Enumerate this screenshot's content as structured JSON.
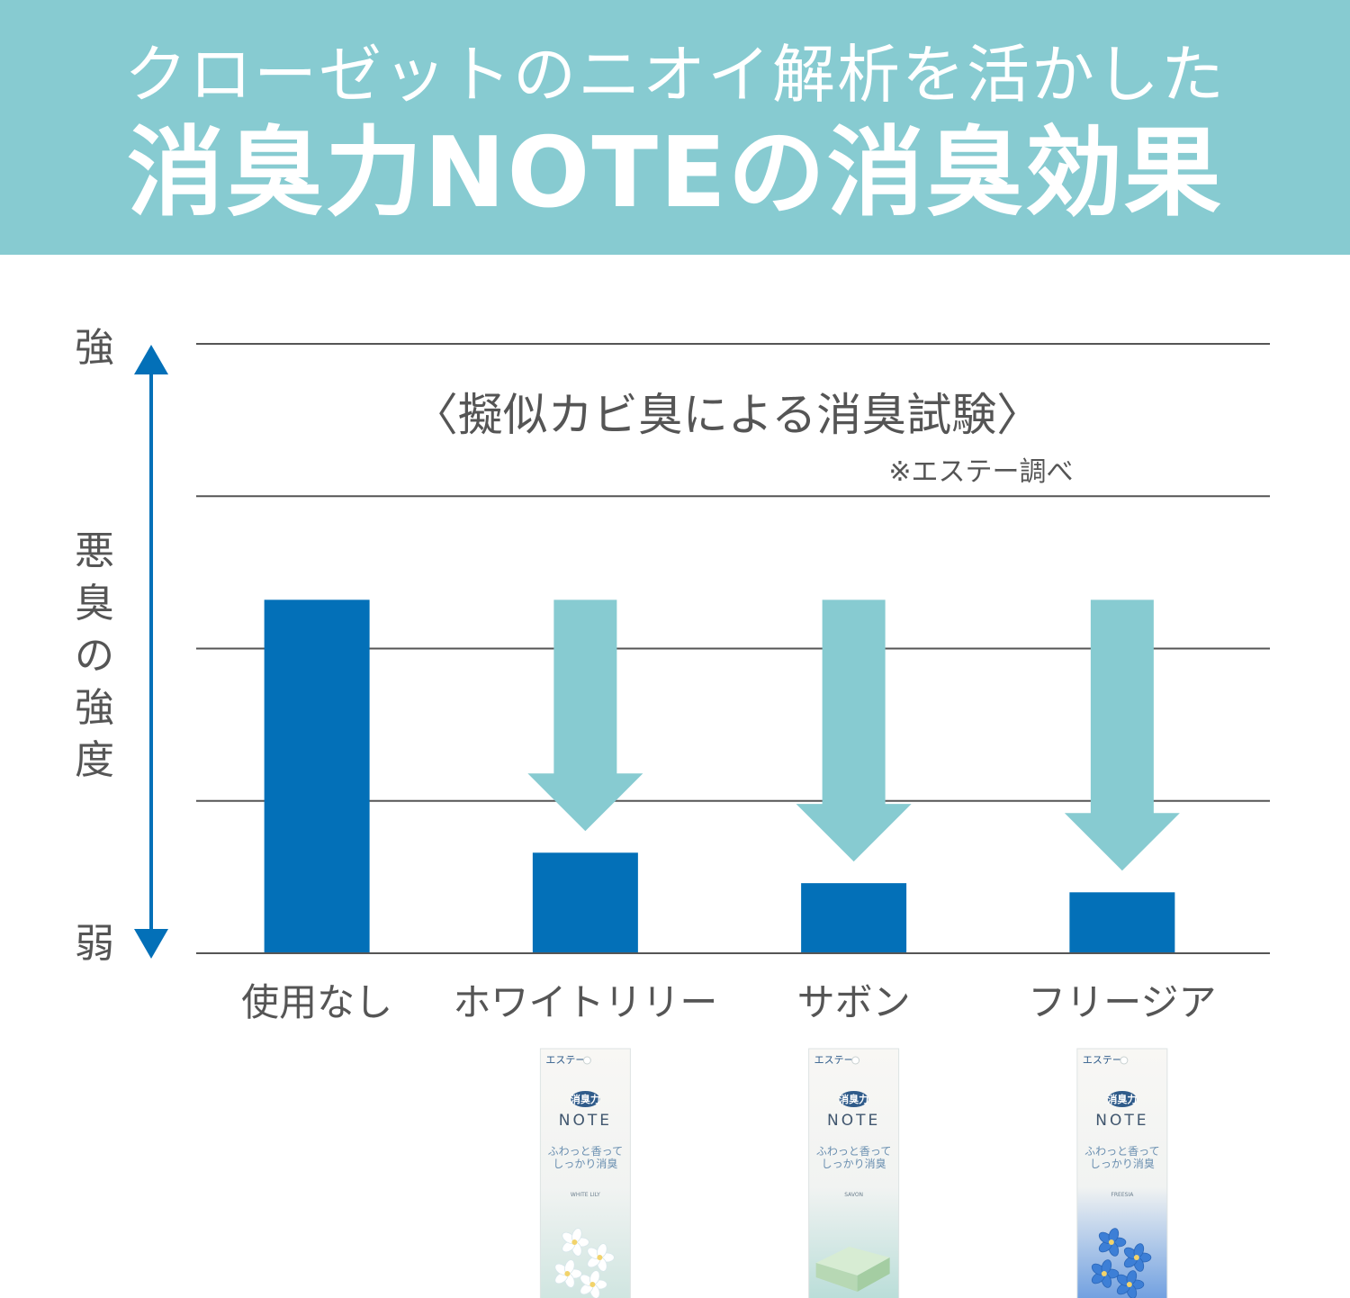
{
  "header": {
    "line1": "クローゼットのニオイ解析を活かした",
    "line2": "消臭力NOTEの消臭効果"
  },
  "colors": {
    "header_bg": "#87cbd1",
    "bar": "#0370b8",
    "arrow_down": "#87cbd1",
    "axis_arrow": "#0370b8",
    "gridline": "#555555",
    "text": "#555555"
  },
  "chart_data": {
    "type": "bar",
    "title": "〈擬似カビ臭による消臭試験〉",
    "source_note": "※エステー調べ",
    "ylabel": "悪臭の強度",
    "ytick_top": "強",
    "ytick_bottom": "弱",
    "ylim": [
      0,
      100
    ],
    "grid": true,
    "categories": [
      "使用なし",
      "ホワイトリリー",
      "サボン",
      "フリージア"
    ],
    "values": [
      58,
      16.5,
      11.5,
      10
    ]
  },
  "products": [
    {
      "category": "ホワイトリリー",
      "brand": "エステー",
      "logo": "消臭力",
      "name": "NOTE",
      "catch1": "ふわっと香って",
      "catch2": "しっかり消臭",
      "scent": "WHITE LILY",
      "image_icon": "lily-flower-icon"
    },
    {
      "category": "サボン",
      "brand": "エステー",
      "logo": "消臭力",
      "name": "NOTE",
      "catch1": "ふわっと香って",
      "catch2": "しっかり消臭",
      "scent": "SAVON",
      "image_icon": "soap-bar-icon"
    },
    {
      "category": "フリージア",
      "brand": "エステー",
      "logo": "消臭力",
      "name": "NOTE",
      "catch1": "ふわっと香って",
      "catch2": "しっかり消臭",
      "scent": "FREESIA",
      "image_icon": "freesia-flower-icon"
    }
  ]
}
